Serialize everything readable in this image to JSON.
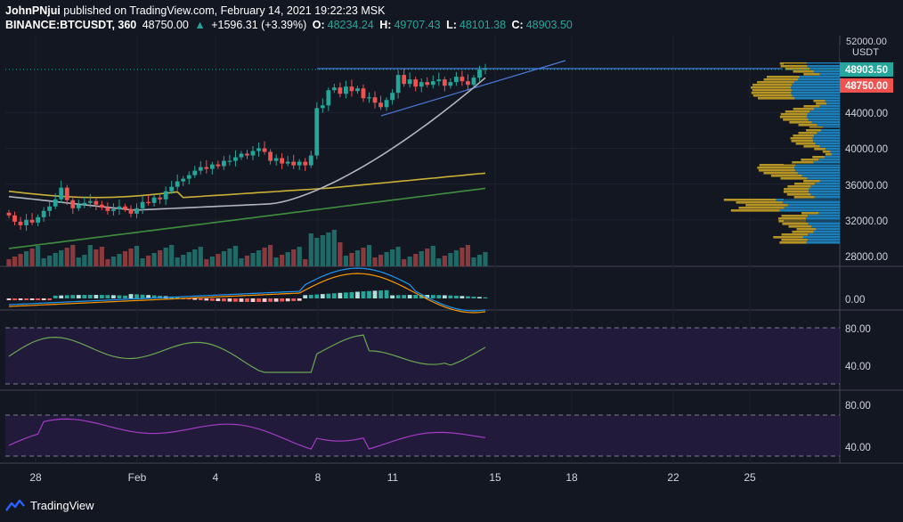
{
  "header": {
    "author": "JohnPNjui",
    "published_text": "published on TradingView.com, February 14, 2021 19:22:23 MSK",
    "symbol": "BINANCE:BTCUSDT, 360",
    "last": "48750.00",
    "change": "+1596.31 (+3.39%)",
    "o_label": "O:",
    "o_value": "48234.24",
    "h_label": "H:",
    "h_value": "49707.43",
    "l_label": "L:",
    "l_value": "48101.38",
    "c_label": "C:",
    "c_value": "48903.50"
  },
  "price_axis": {
    "top_label": "52000.00",
    "currency": "USDT",
    "ticks": [
      "44000.00",
      "40000.00",
      "36000.00",
      "32000.00",
      "28000.00"
    ],
    "current_price_tag": "48903.50",
    "open_price_tag": "48750.00"
  },
  "macd_axis": {
    "ticks": [
      "0.00"
    ]
  },
  "rsi1_axis": {
    "ticks": [
      "80.00",
      "40.00"
    ]
  },
  "rsi2_axis": {
    "ticks": [
      "80.00",
      "40.00"
    ]
  },
  "time_axis": {
    "ticks": [
      "28",
      "Feb",
      "4",
      "8",
      "11",
      "15",
      "18",
      "22",
      "25"
    ]
  },
  "footer": {
    "brand": "TradingView",
    "logo_icon": "tradingview-logo-icon"
  },
  "colors": {
    "background": "#131722",
    "bull": "#26a69a",
    "bear": "#ef5350",
    "ma_white": "#b2b5be",
    "ma_yellow": "#c9b037",
    "ma_green": "#3f8f3f",
    "trendline": "#4a78d8",
    "volume_profile_gold": "#c8a227",
    "volume_profile_blue": "#1e88c8",
    "rsi_green": "#6aa84f",
    "rsi_purple": "#a43bc5",
    "rsi_band": "#211a3a"
  }
}
